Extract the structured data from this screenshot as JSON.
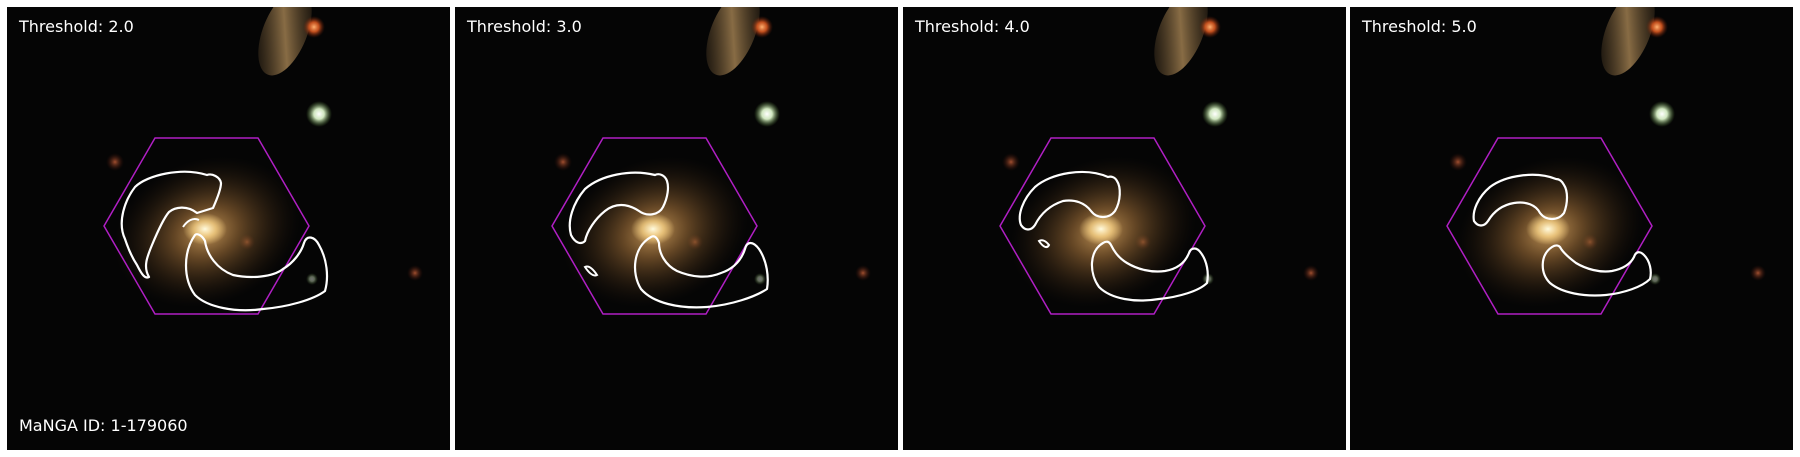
{
  "figure": {
    "panels": [
      {
        "threshold_label": "Threshold: 2.0",
        "threshold": 2.0
      },
      {
        "threshold_label": "Threshold: 3.0",
        "threshold": 3.0
      },
      {
        "threshold_label": "Threshold: 4.0",
        "threshold": 4.0
      },
      {
        "threshold_label": "Threshold: 5.0",
        "threshold": 5.0
      }
    ],
    "manga_id_label": "MaNGA ID: 1-179060",
    "colors": {
      "background": "#050505",
      "hexagon": "#b01fc4",
      "contour": "#ffffff",
      "galaxy_core": "#fff0b8",
      "galaxy_halo": "#b07a3e",
      "star_white": "#f2ffe8",
      "star_orange": "#ff7b2e",
      "star_red": "#d04a2a",
      "streak": "#c09860"
    }
  }
}
